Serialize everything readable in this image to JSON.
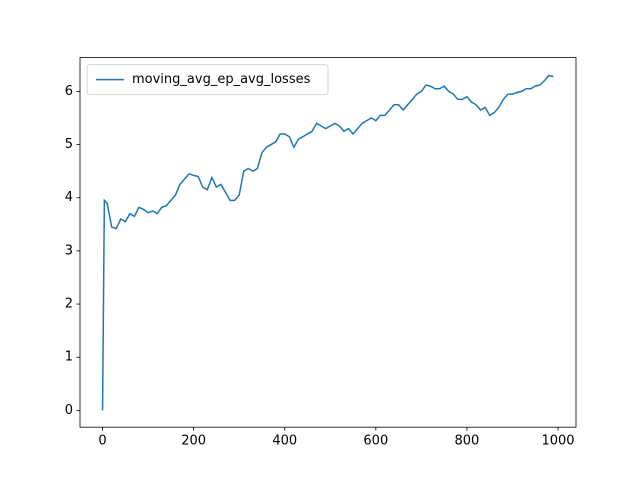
{
  "chart_data": {
    "type": "line",
    "x": [
      0,
      4,
      10,
      20,
      30,
      40,
      50,
      60,
      70,
      80,
      90,
      100,
      110,
      120,
      130,
      140,
      150,
      160,
      170,
      180,
      190,
      200,
      210,
      220,
      230,
      240,
      250,
      260,
      270,
      280,
      290,
      300,
      310,
      320,
      330,
      340,
      350,
      360,
      370,
      380,
      390,
      400,
      410,
      420,
      430,
      440,
      450,
      460,
      470,
      480,
      490,
      500,
      510,
      520,
      530,
      540,
      550,
      560,
      570,
      580,
      590,
      600,
      610,
      620,
      630,
      640,
      650,
      660,
      670,
      680,
      690,
      700,
      710,
      720,
      730,
      740,
      750,
      760,
      770,
      780,
      790,
      800,
      810,
      820,
      830,
      840,
      850,
      860,
      870,
      880,
      890,
      900,
      910,
      920,
      930,
      940,
      950,
      960,
      970,
      980,
      990
    ],
    "series": [
      {
        "name": "moving_avg_ep_avg_losses",
        "color": "#1f77b4",
        "values": [
          0,
          3.95,
          3.9,
          3.45,
          3.42,
          3.6,
          3.55,
          3.7,
          3.65,
          3.82,
          3.78,
          3.72,
          3.75,
          3.7,
          3.82,
          3.85,
          3.95,
          4.05,
          4.25,
          4.35,
          4.45,
          4.42,
          4.4,
          4.2,
          4.15,
          4.38,
          4.2,
          4.25,
          4.1,
          3.95,
          3.95,
          4.05,
          4.5,
          4.55,
          4.5,
          4.55,
          4.85,
          4.95,
          5.0,
          5.05,
          5.2,
          5.2,
          5.15,
          4.95,
          5.1,
          5.15,
          5.2,
          5.25,
          5.4,
          5.35,
          5.3,
          5.35,
          5.4,
          5.35,
          5.25,
          5.3,
          5.2,
          5.3,
          5.4,
          5.45,
          5.5,
          5.45,
          5.55,
          5.55,
          5.65,
          5.75,
          5.75,
          5.65,
          5.75,
          5.85,
          5.95,
          6.0,
          6.12,
          6.1,
          6.05,
          6.05,
          6.1,
          6.0,
          5.95,
          5.85,
          5.85,
          5.9,
          5.8,
          5.75,
          5.65,
          5.7,
          5.55,
          5.6,
          5.7,
          5.85,
          5.95,
          5.95,
          5.98,
          6.0,
          6.05,
          6.05,
          6.1,
          6.12,
          6.2,
          6.3,
          6.28
        ]
      }
    ],
    "xlim": [
      -49.5,
      1039.5
    ],
    "xticks": [
      0,
      200,
      400,
      600,
      800,
      1000
    ],
    "ylim": [
      -0.316,
      6.636
    ],
    "yticks": [
      0,
      1,
      2,
      3,
      4,
      5,
      6
    ],
    "legend": "upper left"
  }
}
